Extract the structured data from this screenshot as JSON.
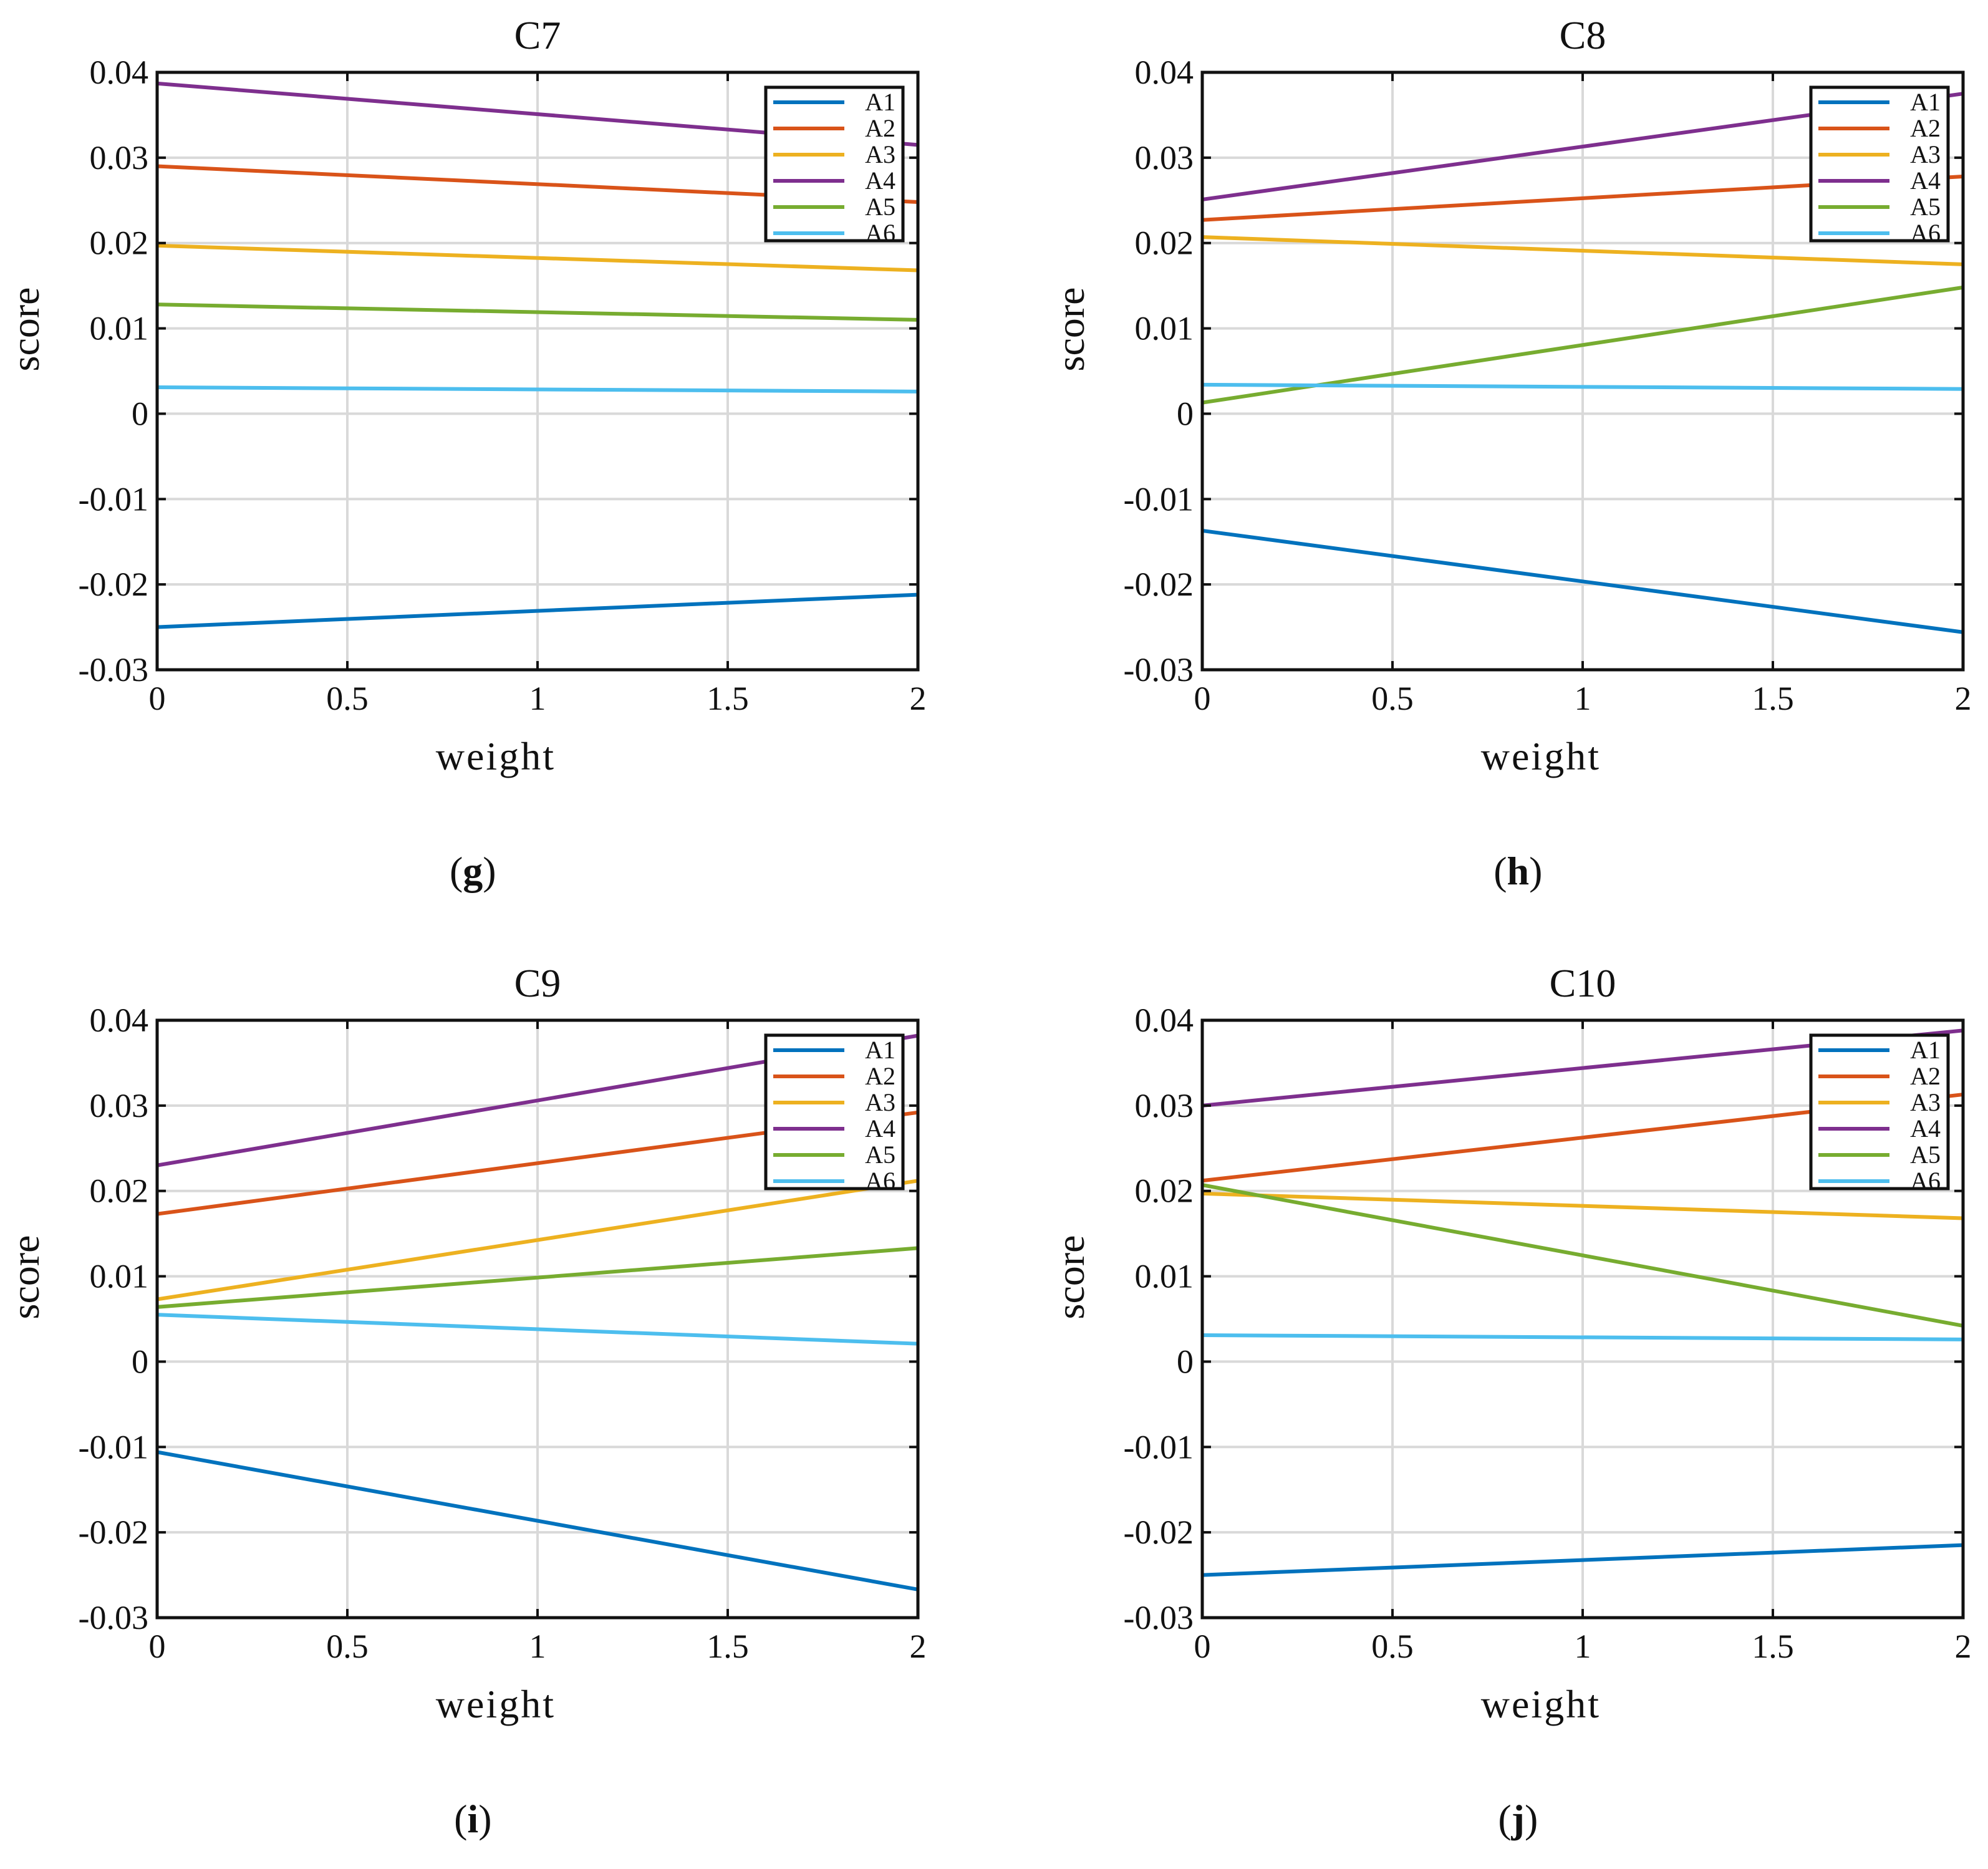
{
  "figure": {
    "series_names": [
      "A1",
      "A2",
      "A3",
      "A4",
      "A5",
      "A6"
    ],
    "colors": {
      "A1": "#0072BD",
      "A2": "#D95319",
      "A3": "#EDB120",
      "A4": "#7E2F8E",
      "A5": "#77AC30",
      "A6": "#4DBEEE"
    }
  },
  "chart_data": [
    {
      "type": "line",
      "title": "C7",
      "caption": {
        "open": "(",
        "letter": "g",
        "close": ")"
      },
      "xlabel": "weight",
      "ylabel": "score",
      "xlim": [
        0,
        2
      ],
      "ylim": [
        -0.03,
        0.04
      ],
      "xticks": [
        0,
        0.5,
        1,
        1.5,
        2
      ],
      "xtick_labels": [
        "0",
        "0.5",
        "1",
        "1.5",
        "2"
      ],
      "yticks": [
        -0.03,
        -0.02,
        -0.01,
        0,
        0.01,
        0.02,
        0.03,
        0.04
      ],
      "ytick_labels": [
        "-0.03",
        "-0.02",
        "-0.01",
        "0",
        "0.01",
        "0.02",
        "0.03",
        "0.04"
      ],
      "grid": true,
      "legend_position": "top-right",
      "x": [
        0,
        2
      ],
      "series": [
        {
          "name": "A1",
          "values": [
            -0.025,
            -0.0212
          ]
        },
        {
          "name": "A2",
          "values": [
            0.029,
            0.0248
          ]
        },
        {
          "name": "A3",
          "values": [
            0.0197,
            0.0168
          ]
        },
        {
          "name": "A4",
          "values": [
            0.0387,
            0.0315
          ]
        },
        {
          "name": "A5",
          "values": [
            0.0128,
            0.011
          ]
        },
        {
          "name": "A6",
          "values": [
            0.0031,
            0.0026
          ]
        }
      ]
    },
    {
      "type": "line",
      "title": "C8",
      "caption": {
        "open": "(",
        "letter": "h",
        "close": ")"
      },
      "xlabel": "weight",
      "ylabel": "score",
      "xlim": [
        0,
        2
      ],
      "ylim": [
        -0.03,
        0.04
      ],
      "xticks": [
        0,
        0.5,
        1,
        1.5,
        2
      ],
      "xtick_labels": [
        "0",
        "0.5",
        "1",
        "1.5",
        "2"
      ],
      "yticks": [
        -0.03,
        -0.02,
        -0.01,
        0,
        0.01,
        0.02,
        0.03,
        0.04
      ],
      "ytick_labels": [
        "-0.03",
        "-0.02",
        "-0.01",
        "0",
        "0.01",
        "0.02",
        "0.03",
        "0.04"
      ],
      "grid": true,
      "legend_position": "top-right",
      "x": [
        0,
        2
      ],
      "series": [
        {
          "name": "A1",
          "values": [
            -0.0137,
            -0.0256
          ]
        },
        {
          "name": "A2",
          "values": [
            0.0227,
            0.0278
          ]
        },
        {
          "name": "A3",
          "values": [
            0.0207,
            0.0175
          ]
        },
        {
          "name": "A4",
          "values": [
            0.0251,
            0.0375
          ]
        },
        {
          "name": "A5",
          "values": [
            0.0013,
            0.0148
          ]
        },
        {
          "name": "A6",
          "values": [
            0.0034,
            0.0029
          ]
        }
      ]
    },
    {
      "type": "line",
      "title": "C9",
      "caption": {
        "open": "(",
        "letter": "i",
        "close": ")"
      },
      "xlabel": "weight",
      "ylabel": "score",
      "xlim": [
        0,
        2
      ],
      "ylim": [
        -0.03,
        0.04
      ],
      "xticks": [
        0,
        0.5,
        1,
        1.5,
        2
      ],
      "xtick_labels": [
        "0",
        "0.5",
        "1",
        "1.5",
        "2"
      ],
      "yticks": [
        -0.03,
        -0.02,
        -0.01,
        0,
        0.01,
        0.02,
        0.03,
        0.04
      ],
      "ytick_labels": [
        "-0.03",
        "-0.02",
        "-0.01",
        "0",
        "0.01",
        "0.02",
        "0.03",
        "0.04"
      ],
      "grid": true,
      "legend_position": "top-right",
      "x": [
        0,
        2
      ],
      "series": [
        {
          "name": "A1",
          "values": [
            -0.0106,
            -0.0267
          ]
        },
        {
          "name": "A2",
          "values": [
            0.0173,
            0.0292
          ]
        },
        {
          "name": "A3",
          "values": [
            0.0073,
            0.0212
          ]
        },
        {
          "name": "A4",
          "values": [
            0.023,
            0.0382
          ]
        },
        {
          "name": "A5",
          "values": [
            0.0064,
            0.0133
          ]
        },
        {
          "name": "A6",
          "values": [
            0.0055,
            0.0021
          ]
        }
      ]
    },
    {
      "type": "line",
      "title": "C10",
      "caption": {
        "open": "(",
        "letter": "j",
        "close": ")"
      },
      "xlabel": "weight",
      "ylabel": "score",
      "xlim": [
        0,
        2
      ],
      "ylim": [
        -0.03,
        0.04
      ],
      "xticks": [
        0,
        0.5,
        1,
        1.5,
        2
      ],
      "xtick_labels": [
        "0",
        "0.5",
        "1",
        "1.5",
        "2"
      ],
      "yticks": [
        -0.03,
        -0.02,
        -0.01,
        0,
        0.01,
        0.02,
        0.03,
        0.04
      ],
      "ytick_labels": [
        "-0.03",
        "-0.02",
        "-0.01",
        "0",
        "0.01",
        "0.02",
        "0.03",
        "0.04"
      ],
      "grid": true,
      "legend_position": "top-right",
      "x": [
        0,
        2
      ],
      "series": [
        {
          "name": "A1",
          "values": [
            -0.025,
            -0.0215
          ]
        },
        {
          "name": "A2",
          "values": [
            0.0212,
            0.0313
          ]
        },
        {
          "name": "A3",
          "values": [
            0.0197,
            0.0168
          ]
        },
        {
          "name": "A4",
          "values": [
            0.03,
            0.0388
          ]
        },
        {
          "name": "A5",
          "values": [
            0.0207,
            0.0042
          ]
        },
        {
          "name": "A6",
          "values": [
            0.0031,
            0.0026
          ]
        }
      ]
    }
  ]
}
